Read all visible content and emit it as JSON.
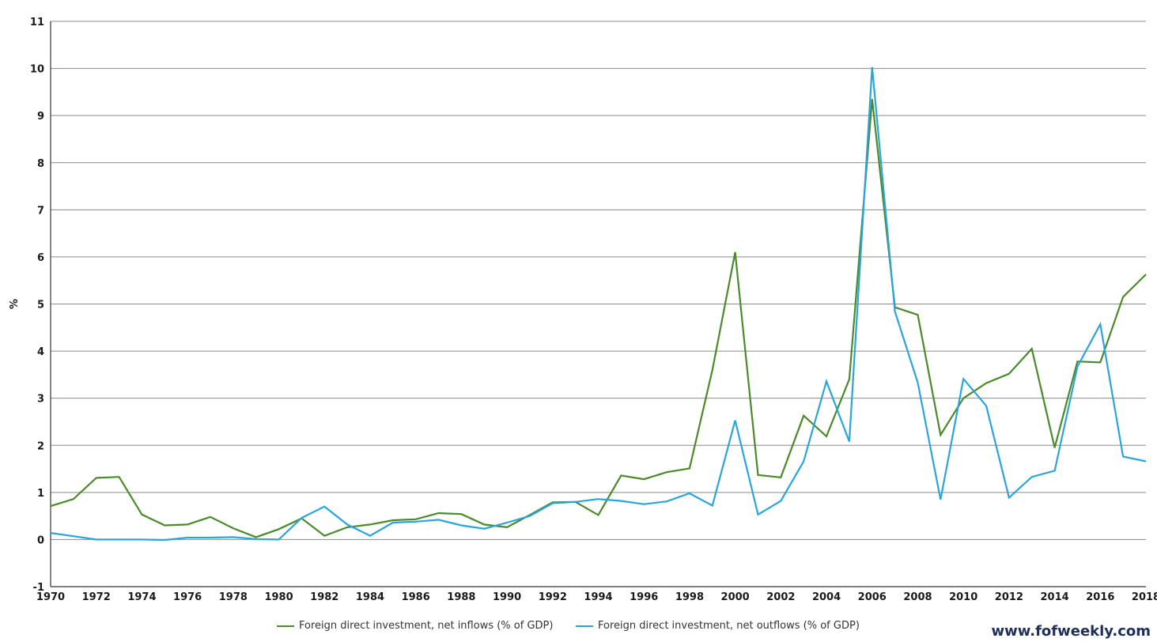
{
  "chart_data": {
    "type": "line",
    "ylabel": "%",
    "xlabel": "",
    "ylim": [
      -1,
      11
    ],
    "xlim": [
      1970,
      2018
    ],
    "yticks": [
      -1,
      0,
      1,
      2,
      3,
      4,
      5,
      6,
      7,
      8,
      9,
      10,
      11
    ],
    "xticks": [
      1970,
      1972,
      1974,
      1976,
      1978,
      1980,
      1982,
      1984,
      1986,
      1988,
      1990,
      1992,
      1994,
      1996,
      1998,
      2000,
      2002,
      2004,
      2006,
      2008,
      2010,
      2012,
      2014,
      2016,
      2018
    ],
    "grid": "horizontal",
    "legend_position": "bottom",
    "x": [
      1970,
      1971,
      1972,
      1973,
      1974,
      1975,
      1976,
      1977,
      1978,
      1979,
      1980,
      1981,
      1982,
      1983,
      1984,
      1985,
      1986,
      1987,
      1988,
      1989,
      1990,
      1991,
      1992,
      1993,
      1994,
      1995,
      1996,
      1997,
      1998,
      1999,
      2000,
      2001,
      2002,
      2003,
      2004,
      2005,
      2006,
      2007,
      2008,
      2009,
      2010,
      2011,
      2012,
      2013,
      2014,
      2015,
      2016,
      2017,
      2018
    ],
    "series": [
      {
        "name": "Foreign direct investment, net inflows (% of GDP)",
        "color": "#4a8a2a",
        "values": [
          0.71,
          0.86,
          1.31,
          1.33,
          0.53,
          0.3,
          0.32,
          0.48,
          0.24,
          0.05,
          0.22,
          0.45,
          0.08,
          0.26,
          0.32,
          0.41,
          0.43,
          0.56,
          0.54,
          0.32,
          0.26,
          0.52,
          0.79,
          0.8,
          0.52,
          1.36,
          1.28,
          1.43,
          1.51,
          3.6,
          6.1,
          1.37,
          1.32,
          2.63,
          2.19,
          3.4,
          9.35,
          4.93,
          4.77,
          2.22,
          3.0,
          3.32,
          3.52,
          4.05,
          1.95,
          3.78,
          3.76,
          5.15,
          5.63
        ]
      },
      {
        "name": "Foreign direct investment, net outflows (% of GDP)",
        "color": "#2aa5dc",
        "values": [
          0.14,
          0.07,
          0.0,
          0.0,
          0.0,
          -0.01,
          0.04,
          0.04,
          0.05,
          0.01,
          0.0,
          0.46,
          0.7,
          0.32,
          0.08,
          0.36,
          0.38,
          0.42,
          0.3,
          0.23,
          0.36,
          0.5,
          0.77,
          0.8,
          0.86,
          0.82,
          0.75,
          0.81,
          0.98,
          0.72,
          2.53,
          0.53,
          0.82,
          1.66,
          3.36,
          2.08,
          10.03,
          4.84,
          3.33,
          0.85,
          3.41,
          2.84,
          0.89,
          1.33,
          1.46,
          3.67,
          4.57,
          1.76,
          1.66
        ]
      }
    ]
  },
  "watermark": "www.fofweekly.com"
}
